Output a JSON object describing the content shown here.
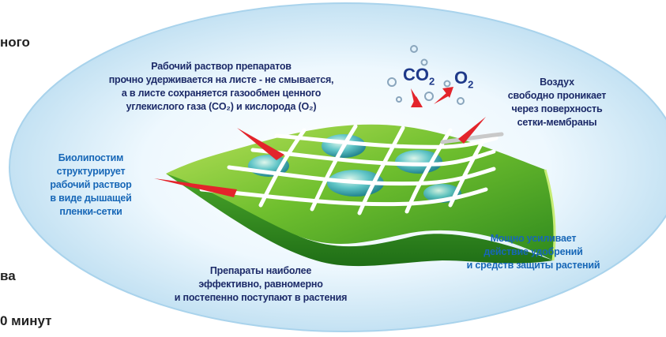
{
  "left_cropped": {
    "line1": "ного",
    "line2": "ва",
    "line3": "0 минут"
  },
  "labels": {
    "top_center": [
      "Рабочий раствор препаратов",
      "прочно удерживается на листе - не смывается,",
      "а в листе сохраняется газообмен ценного",
      "углекислого газа (CO₂) и кислорода (O₂)"
    ],
    "left": [
      "Биолипостим",
      "структурирует",
      "рабочий раствор",
      "в виде дышащей",
      "пленки-сетки"
    ],
    "right_top": [
      "Воздух",
      "свободно проникает",
      "через  поверхность",
      "сетки-мембраны"
    ],
    "right_bottom": [
      "Мощно усиливает",
      "действие удобрений",
      "и средств защиты растений"
    ],
    "bottom_center": [
      "Препараты наиболее",
      "эффективно, равномерно",
      "и постепенно поступают в растения"
    ]
  },
  "gases": {
    "co2": {
      "base": "CO",
      "sub": "2"
    },
    "o2": {
      "base": "O",
      "sub": "2"
    }
  },
  "colors": {
    "ellipse_outer": "#c9e3f3",
    "ellipse_inner": "#f4fbff",
    "leaf_light": "#9bd33a",
    "leaf_dark": "#2f8a1e",
    "net": "#ffffff",
    "arrow": "#e3242b",
    "label_dark": "#1c2a68",
    "label_blue": "#1767b7"
  }
}
